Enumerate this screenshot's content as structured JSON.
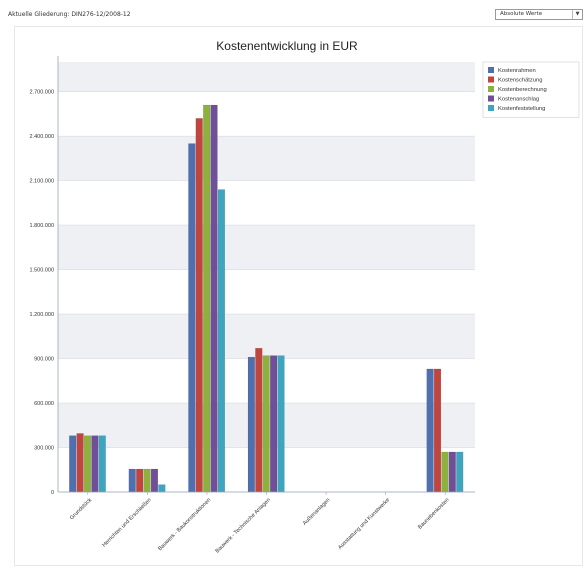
{
  "header": {
    "breadcrumb": "Aktuelle Gliederung: DIN276-12/2008-12",
    "view_select_value": "Absolute Werte"
  },
  "colors": {
    "Kostenrahmen": "#4f6fae",
    "Kostenschätzung": "#c0453f",
    "Kostenberechnung": "#8eb03f",
    "Kostenanschlag": "#6f4f98",
    "Kostenfeststellung": "#3fa4bd"
  },
  "chart_data": {
    "type": "bar",
    "title": "Kostenentwicklung in EUR",
    "xlabel": "",
    "ylabel": "",
    "ylim": [
      0,
      2900000
    ],
    "yticks": [
      0,
      300000,
      600000,
      900000,
      1200000,
      1500000,
      1800000,
      2100000,
      2400000,
      2700000
    ],
    "ytick_labels": [
      "0",
      "300.000",
      "600.000",
      "900.000",
      "1.200.000",
      "1.500.000",
      "1.800.000",
      "2.100.000",
      "2.400.000",
      "2.700.000"
    ],
    "categories": [
      "Grundstück",
      "Herrichten und Erschließen",
      "Bauwerk - Baukonstruktionen",
      "Bauwerk - Technische Anlagen",
      "Außenanlagen",
      "Ausstattung und Kunstwerke",
      "Baunebenkosten"
    ],
    "series": [
      {
        "name": "Kostenrahmen",
        "values": [
          380000,
          155000,
          2350000,
          910000,
          0,
          0,
          830000
        ]
      },
      {
        "name": "Kostenschätzung",
        "values": [
          395000,
          155000,
          2520000,
          970000,
          0,
          0,
          830000
        ]
      },
      {
        "name": "Kostenberechnung",
        "values": [
          380000,
          155000,
          2610000,
          920000,
          0,
          0,
          270000
        ]
      },
      {
        "name": "Kostenanschlag",
        "values": [
          380000,
          155000,
          2610000,
          920000,
          0,
          0,
          270000
        ]
      },
      {
        "name": "Kostenfeststellung",
        "values": [
          380000,
          50000,
          2040000,
          920000,
          0,
          0,
          270000
        ]
      }
    ],
    "grid": true,
    "legend_position": "top-right"
  }
}
